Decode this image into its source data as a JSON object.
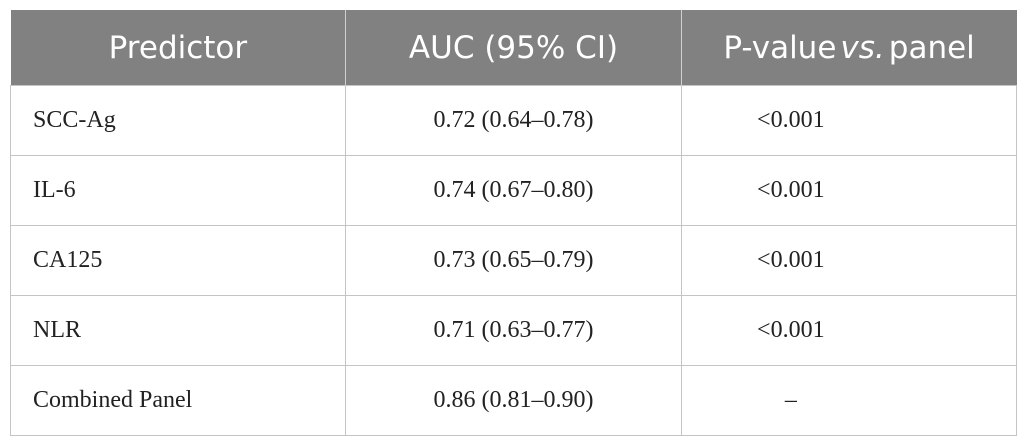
{
  "table": {
    "columns": [
      "Predictor",
      "AUC (95% CI)",
      [
        "P-value",
        "vs.",
        "panel"
      ]
    ],
    "rows": [
      [
        "SCC-Ag",
        "0.72 (0.64–0.78)",
        "<0.001"
      ],
      [
        "IL-6",
        "0.74 (0.67–0.80)",
        "<0.001"
      ],
      [
        "CA125",
        "0.73 (0.65–0.79)",
        "<0.001"
      ],
      [
        "NLR",
        "0.71 (0.63–0.77)",
        "<0.001"
      ],
      [
        "Combined Panel",
        "0.86 (0.81–0.90)",
        "–"
      ]
    ]
  }
}
